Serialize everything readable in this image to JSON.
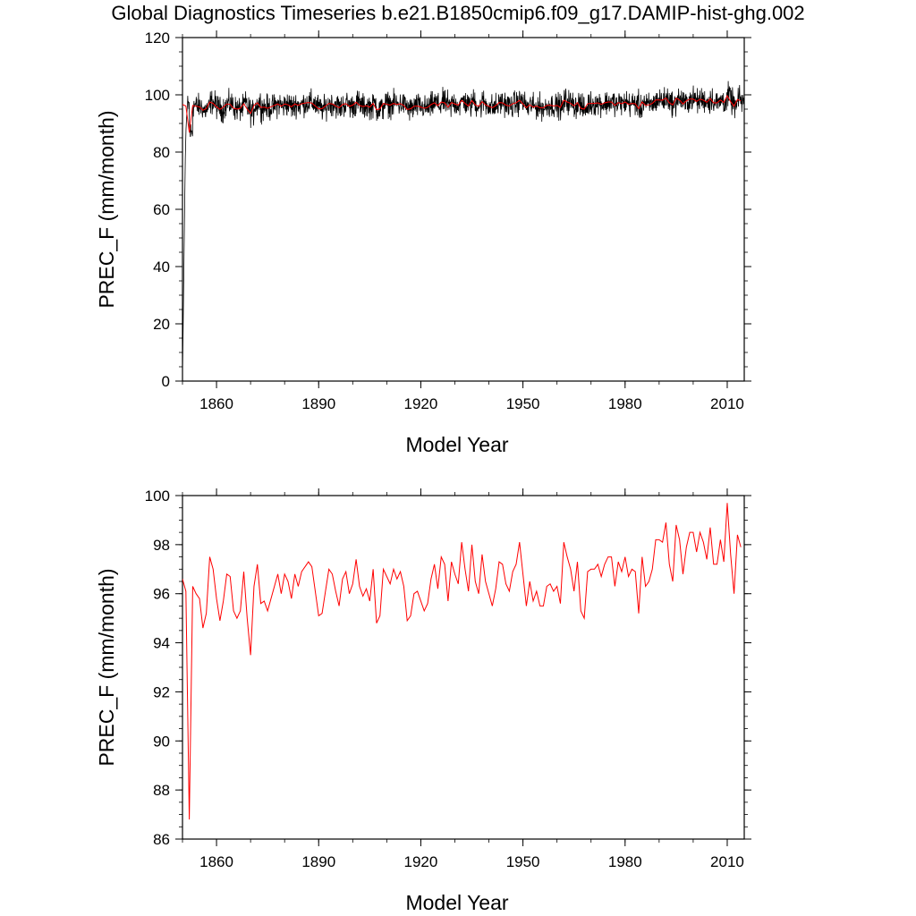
{
  "title": "Global Diagnostics Timeseries b.e21.B1850cmip6.f09_g17.DAMIP-hist-ghg.002",
  "chart_data": [
    {
      "type": "line",
      "xlabel": "Model Year",
      "ylabel": "PREC_F (mm/month)",
      "xlim": [
        1850,
        2015
      ],
      "ylim": [
        0,
        120
      ],
      "xticks": [
        1860,
        1890,
        1920,
        1950,
        1980,
        2010
      ],
      "yticks": [
        0,
        20,
        40,
        60,
        80,
        100,
        120
      ],
      "grid": false,
      "colors": {
        "monthly": "#000000",
        "annual": "#ff0000"
      },
      "series": [
        {
          "key": "monthly",
          "resolution": "monthly",
          "x_start": 1850.0,
          "x_step": 0.0833333,
          "spinup": [
            3.0,
            20.0,
            40.0,
            60.0,
            78.0,
            88.0,
            93.0
          ],
          "base_from_year": 1851.5,
          "note_shape": "rises from ~3 to ~95 during the first ~1.5 years, then oscillates between ~91 and ~103, tracking the annual mean"
        },
        {
          "key": "annual",
          "resolution": "annual",
          "x_start": 1850,
          "x_step": 1
        }
      ]
    },
    {
      "type": "line",
      "xlabel": "Model Year",
      "ylabel": "PREC_F (mm/month)",
      "xlim": [
        1850,
        2015
      ],
      "ylim": [
        86,
        100
      ],
      "xticks": [
        1860,
        1890,
        1920,
        1950,
        1980,
        2010
      ],
      "yticks": [
        86,
        88,
        90,
        92,
        94,
        96,
        98,
        100
      ],
      "grid": false,
      "series": [
        {
          "key": "annual",
          "color": "#ff0000",
          "x_start": 1850,
          "x_step": 1,
          "values": [
            96.6,
            96.1,
            86.8,
            96.3,
            96.0,
            95.8,
            94.6,
            95.2,
            97.5,
            97.0,
            95.8,
            94.9,
            95.7,
            96.8,
            96.7,
            95.3,
            95.0,
            95.3,
            96.9,
            95.0,
            93.5,
            96.3,
            97.2,
            95.6,
            95.7,
            95.3,
            95.8,
            96.3,
            96.8,
            96.0,
            96.8,
            96.5,
            95.8,
            96.8,
            96.3,
            96.9,
            97.1,
            97.3,
            97.1,
            96.1,
            95.1,
            95.2,
            96.1,
            97.0,
            96.8,
            96.1,
            95.5,
            96.6,
            96.9,
            96.0,
            96.4,
            97.4,
            96.3,
            95.9,
            96.2,
            95.7,
            97.0,
            94.8,
            95.1,
            97.0,
            96.7,
            96.4,
            97.0,
            96.6,
            96.9,
            96.3,
            94.9,
            95.1,
            96.0,
            96.1,
            95.7,
            95.3,
            95.6,
            96.6,
            97.2,
            96.2,
            97.5,
            97.2,
            95.7,
            97.3,
            96.8,
            96.4,
            98.1,
            97.0,
            96.1,
            98.0,
            96.5,
            96.0,
            97.6,
            96.5,
            96.0,
            95.5,
            96.2,
            97.3,
            97.2,
            96.4,
            96.1,
            96.9,
            97.2,
            98.1,
            96.8,
            95.5,
            96.5,
            95.7,
            96.1,
            95.5,
            95.5,
            96.3,
            96.4,
            96.1,
            96.3,
            95.6,
            98.1,
            97.5,
            97.0,
            96.1,
            97.3,
            95.3,
            95.0,
            96.9,
            97.0,
            97.0,
            97.2,
            96.7,
            97.2,
            97.5,
            97.5,
            96.3,
            97.3,
            96.9,
            97.5,
            96.7,
            97.0,
            96.9,
            95.2,
            97.5,
            96.3,
            96.5,
            97.0,
            98.2,
            98.2,
            98.1,
            98.9,
            97.2,
            96.5,
            98.8,
            98.2,
            96.8,
            97.9,
            98.5,
            98.5,
            97.7,
            98.5,
            98.1,
            97.4,
            98.7,
            97.2,
            97.2,
            98.2,
            97.3,
            99.7,
            97.6,
            96.0,
            98.4,
            97.9
          ]
        }
      ]
    }
  ]
}
